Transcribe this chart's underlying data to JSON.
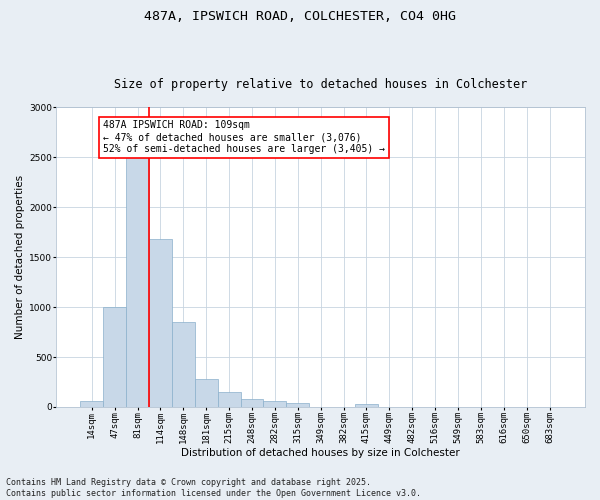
{
  "title_line1": "487A, IPSWICH ROAD, COLCHESTER, CO4 0HG",
  "title_line2": "Size of property relative to detached houses in Colchester",
  "xlabel": "Distribution of detached houses by size in Colchester",
  "ylabel": "Number of detached properties",
  "categories": [
    "14sqm",
    "47sqm",
    "81sqm",
    "114sqm",
    "148sqm",
    "181sqm",
    "215sqm",
    "248sqm",
    "282sqm",
    "315sqm",
    "349sqm",
    "382sqm",
    "415sqm",
    "449sqm",
    "482sqm",
    "516sqm",
    "549sqm",
    "583sqm",
    "616sqm",
    "650sqm",
    "683sqm"
  ],
  "values": [
    60,
    1000,
    2500,
    1680,
    850,
    280,
    150,
    80,
    55,
    40,
    0,
    0,
    25,
    0,
    0,
    0,
    0,
    0,
    0,
    0,
    0
  ],
  "bar_color": "#c8d8e8",
  "bar_edgecolor": "#8ab0cc",
  "vline_x": 2.5,
  "vline_color": "red",
  "vline_linewidth": 1.2,
  "ylim": [
    0,
    3000
  ],
  "yticks": [
    0,
    500,
    1000,
    1500,
    2000,
    2500,
    3000
  ],
  "annotation_text": "487A IPSWICH ROAD: 109sqm\n← 47% of detached houses are smaller (3,076)\n52% of semi-detached houses are larger (3,405) →",
  "footer_line1": "Contains HM Land Registry data © Crown copyright and database right 2025.",
  "footer_line2": "Contains public sector information licensed under the Open Government Licence v3.0.",
  "background_color": "#e8eef4",
  "plot_background": "#ffffff",
  "grid_color": "#c8d4e0",
  "title_fontsize": 9.5,
  "subtitle_fontsize": 8.5,
  "axis_label_fontsize": 7.5,
  "tick_fontsize": 6.5,
  "annotation_fontsize": 7,
  "footer_fontsize": 6
}
